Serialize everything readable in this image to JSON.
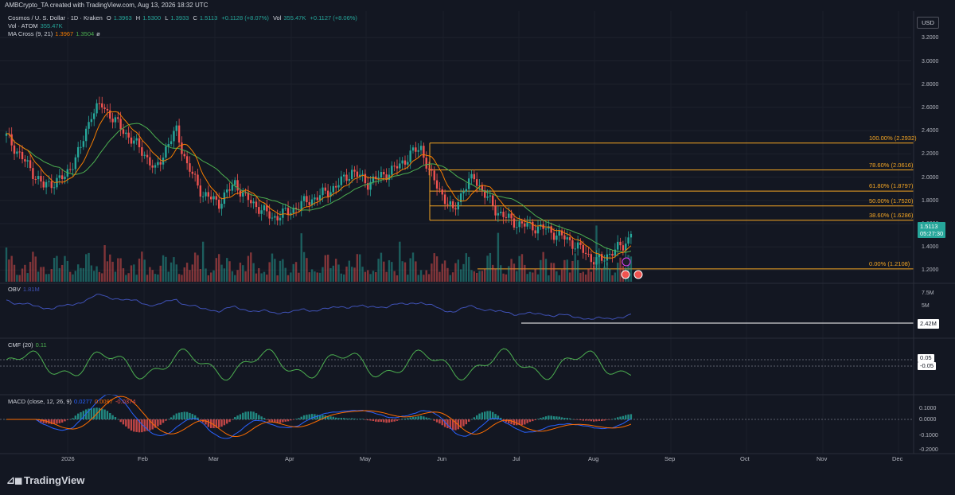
{
  "header": {
    "text": "AMBCrypto_TA created with TradingView.com, Aug 13, 2026 18:32 UTC"
  },
  "currency": "USD",
  "symbol": {
    "name": "Cosmos / U. S. Dollar · 1D · Kraken",
    "o_label": "O",
    "o": "1.3963",
    "h_label": "H",
    "h": "1.5300",
    "l_label": "L",
    "l": "1.3933",
    "c_label": "C",
    "c": "1.5113",
    "change": "+0.1128 (+8.07%)",
    "vol_label": "Vol",
    "vol": "355.47K",
    "vol_change": "+0.1127 (+8.06%)"
  },
  "indicators": {
    "vol": {
      "label": "Vol · ATOM",
      "value": "355.47K"
    },
    "ma": {
      "label": "MA Cross (9, 21)",
      "v1": "1.3967",
      "v2": "1.3504",
      "v3": "ø"
    },
    "obv": {
      "label": "OBV",
      "value": "1.81M",
      "axis": [
        "7.5M",
        "5M"
      ],
      "tag": "2.42M"
    },
    "cmf": {
      "label": "CMF (20)",
      "value": "0.11",
      "tag1": "0.05",
      "tag2": "-0.05"
    },
    "macd": {
      "label": "MACD (close, 12, 26, 9)",
      "v1": "0.0277",
      "v2": "0.0097",
      "v3": "-0.0374",
      "axis": [
        "0.0000",
        "-0.1000",
        "-0.2000",
        "0.1000"
      ]
    }
  },
  "price_axis": [
    "3.2000",
    "3.0000",
    "2.8000",
    "2.6000",
    "2.4000",
    "2.2000",
    "2.0000",
    "1.8000",
    "1.6000",
    "1.4000",
    "1.2000"
  ],
  "last_price": {
    "value": "1.5113",
    "countdown": "05:27:30"
  },
  "fib": [
    {
      "label": "100.00% (2.2932)",
      "level": 2.2932
    },
    {
      "label": "78.60% (2.0616)",
      "level": 2.0616
    },
    {
      "label": "61.80% (1.8797)",
      "level": 1.8797
    },
    {
      "label": "50.00% (1.7520)",
      "level": 1.752
    },
    {
      "label": "38.60% (1.6286)",
      "level": 1.6286
    },
    {
      "label": "0.00% (1.2108)",
      "level": 1.2108
    }
  ],
  "months": [
    "2026",
    "Feb",
    "Mar",
    "Apr",
    "May",
    "Jun",
    "Jul",
    "Aug",
    "Sep",
    "Oct",
    "Nov",
    "Dec"
  ],
  "brand": "TradingView",
  "colors": {
    "up": "#26a69a",
    "down": "#ef5350",
    "fib": "#f5a623",
    "ma_fast": "#f57c00",
    "ma_slow": "#4caf50",
    "obv": "#3f51b5",
    "cmf": "#4caf50",
    "macd": "#2962ff",
    "signal": "#ff6d00",
    "accent": "#26a69a"
  },
  "chart_data": {
    "type": "candlestick",
    "title": "Cosmos / U. S. Dollar · 1D · Kraken",
    "ylim": [
      1.1,
      3.25
    ],
    "closes_key_points": [
      [
        0,
        2.35
      ],
      [
        8,
        2.1
      ],
      [
        14,
        1.92
      ],
      [
        22,
        2.0
      ],
      [
        28,
        2.25
      ],
      [
        32,
        2.55
      ],
      [
        36,
        2.62
      ],
      [
        42,
        2.45
      ],
      [
        48,
        2.3
      ],
      [
        52,
        2.2
      ],
      [
        56,
        2.05
      ],
      [
        60,
        2.25
      ],
      [
        64,
        2.4
      ],
      [
        68,
        2.1
      ],
      [
        74,
        1.85
      ],
      [
        80,
        1.78
      ],
      [
        86,
        1.95
      ],
      [
        90,
        1.82
      ],
      [
        96,
        1.72
      ],
      [
        100,
        1.65
      ],
      [
        106,
        1.7
      ],
      [
        112,
        1.78
      ],
      [
        118,
        1.84
      ],
      [
        124,
        1.92
      ],
      [
        130,
        2.05
      ],
      [
        136,
        1.95
      ],
      [
        142,
        2.02
      ],
      [
        148,
        2.1
      ],
      [
        152,
        2.2
      ],
      [
        156,
        2.25
      ],
      [
        160,
        2.0
      ],
      [
        164,
        1.85
      ],
      [
        168,
        1.7
      ],
      [
        172,
        1.9
      ],
      [
        176,
        2.0
      ],
      [
        180,
        1.85
      ],
      [
        184,
        1.72
      ],
      [
        190,
        1.62
      ],
      [
        196,
        1.58
      ],
      [
        202,
        1.56
      ],
      [
        208,
        1.5
      ],
      [
        214,
        1.42
      ],
      [
        220,
        1.3
      ],
      [
        224,
        1.28
      ],
      [
        228,
        1.37
      ],
      [
        232,
        1.4
      ],
      [
        235,
        1.51
      ]
    ]
  }
}
